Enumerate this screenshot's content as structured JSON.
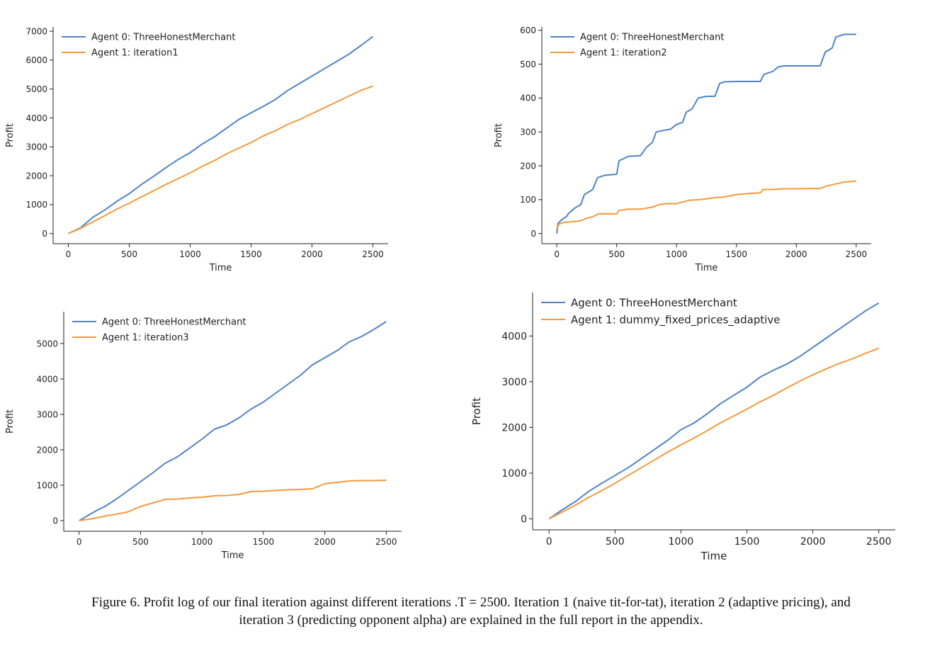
{
  "caption": {
    "line1": "Figure 6. Profit log of our final iteration against different iterations .T = 2500. Iteration 1 (naive tit-for-tat), iteration 2 (adaptive pricing), and",
    "line2": "iteration 3 (predicting opponent alpha) are explained in the full report in the appendix."
  },
  "colors": {
    "agent0": "#4e84c4",
    "agent1": "#f39a3d"
  },
  "chart_data": [
    {
      "type": "line",
      "xlabel": "Time",
      "ylabel": "Profit",
      "xlim": [
        -125,
        2625
      ],
      "ylim": [
        -350,
        7150
      ],
      "xticks": [
        0,
        500,
        1000,
        1500,
        2000,
        2500
      ],
      "yticks": [
        0,
        1000,
        2000,
        3000,
        4000,
        5000,
        6000,
        7000
      ],
      "legend_position": "top-left",
      "grid": false,
      "series": [
        {
          "name": "Agent 0: ThreeHonestMerchant",
          "color": "#4e84c4",
          "points": [
            [
              0,
              0
            ],
            [
              100,
              200
            ],
            [
              200,
              560
            ],
            [
              300,
              820
            ],
            [
              400,
              1120
            ],
            [
              500,
              1380
            ],
            [
              600,
              1700
            ],
            [
              700,
              1980
            ],
            [
              800,
              2280
            ],
            [
              900,
              2560
            ],
            [
              1000,
              2800
            ],
            [
              1100,
              3100
            ],
            [
              1200,
              3350
            ],
            [
              1300,
              3650
            ],
            [
              1400,
              3950
            ],
            [
              1500,
              4180
            ],
            [
              1600,
              4400
            ],
            [
              1700,
              4640
            ],
            [
              1800,
              4950
            ],
            [
              1900,
              5200
            ],
            [
              2000,
              5450
            ],
            [
              2100,
              5700
            ],
            [
              2200,
              5950
            ],
            [
              2300,
              6200
            ],
            [
              2400,
              6500
            ],
            [
              2500,
              6820
            ]
          ]
        },
        {
          "name": "Agent 1: iteration1",
          "color": "#f39a3d",
          "points": [
            [
              0,
              0
            ],
            [
              100,
              180
            ],
            [
              200,
              400
            ],
            [
              300,
              620
            ],
            [
              400,
              850
            ],
            [
              500,
              1050
            ],
            [
              600,
              1270
            ],
            [
              700,
              1480
            ],
            [
              800,
              1700
            ],
            [
              900,
              1900
            ],
            [
              1000,
              2100
            ],
            [
              1100,
              2330
            ],
            [
              1200,
              2530
            ],
            [
              1300,
              2760
            ],
            [
              1400,
              2960
            ],
            [
              1500,
              3150
            ],
            [
              1600,
              3380
            ],
            [
              1700,
              3560
            ],
            [
              1800,
              3780
            ],
            [
              1900,
              3950
            ],
            [
              2000,
              4150
            ],
            [
              2100,
              4350
            ],
            [
              2200,
              4550
            ],
            [
              2300,
              4750
            ],
            [
              2400,
              4950
            ],
            [
              2500,
              5100
            ]
          ]
        }
      ]
    },
    {
      "type": "line",
      "xlabel": "Time",
      "ylabel": "Profit",
      "xlim": [
        -125,
        2625
      ],
      "ylim": [
        -30,
        610
      ],
      "xticks": [
        0,
        500,
        1000,
        1500,
        2000,
        2500
      ],
      "yticks": [
        0,
        100,
        200,
        300,
        400,
        500,
        600
      ],
      "legend_position": "top-left",
      "grid": false,
      "series": [
        {
          "name": "Agent 0: ThreeHonestMerchant",
          "color": "#4e84c4",
          "points": [
            [
              0,
              0
            ],
            [
              10,
              30
            ],
            [
              40,
              40
            ],
            [
              80,
              50
            ],
            [
              100,
              60
            ],
            [
              150,
              75
            ],
            [
              200,
              85
            ],
            [
              230,
              115
            ],
            [
              300,
              130
            ],
            [
              340,
              165
            ],
            [
              400,
              172
            ],
            [
              500,
              175
            ],
            [
              520,
              215
            ],
            [
              600,
              228
            ],
            [
              700,
              230
            ],
            [
              750,
              255
            ],
            [
              800,
              270
            ],
            [
              830,
              300
            ],
            [
              900,
              305
            ],
            [
              950,
              308
            ],
            [
              1000,
              322
            ],
            [
              1050,
              328
            ],
            [
              1080,
              358
            ],
            [
              1130,
              368
            ],
            [
              1180,
              400
            ],
            [
              1250,
              405
            ],
            [
              1320,
              405
            ],
            [
              1360,
              443
            ],
            [
              1400,
              448
            ],
            [
              1500,
              449
            ],
            [
              1700,
              449
            ],
            [
              1730,
              470
            ],
            [
              1800,
              478
            ],
            [
              1850,
              492
            ],
            [
              1900,
              495
            ],
            [
              2000,
              495
            ],
            [
              2100,
              495
            ],
            [
              2200,
              495
            ],
            [
              2240,
              535
            ],
            [
              2300,
              548
            ],
            [
              2330,
              580
            ],
            [
              2400,
              588
            ],
            [
              2500,
              588
            ]
          ]
        },
        {
          "name": "Agent 1: iteration2",
          "color": "#f39a3d",
          "points": [
            [
              0,
              15
            ],
            [
              20,
              28
            ],
            [
              60,
              33
            ],
            [
              150,
              35
            ],
            [
              200,
              38
            ],
            [
              250,
              45
            ],
            [
              300,
              50
            ],
            [
              350,
              58
            ],
            [
              400,
              58
            ],
            [
              500,
              58
            ],
            [
              520,
              68
            ],
            [
              600,
              72
            ],
            [
              700,
              72
            ],
            [
              750,
              75
            ],
            [
              800,
              78
            ],
            [
              850,
              85
            ],
            [
              900,
              88
            ],
            [
              1000,
              88
            ],
            [
              1100,
              98
            ],
            [
              1200,
              100
            ],
            [
              1300,
              105
            ],
            [
              1400,
              108
            ],
            [
              1500,
              115
            ],
            [
              1600,
              118
            ],
            [
              1700,
              120
            ],
            [
              1720,
              130
            ],
            [
              1800,
              130
            ],
            [
              1900,
              132
            ],
            [
              2000,
              132
            ],
            [
              2100,
              133
            ],
            [
              2200,
              133
            ],
            [
              2250,
              140
            ],
            [
              2350,
              148
            ],
            [
              2400,
              152
            ],
            [
              2500,
              155
            ]
          ]
        }
      ]
    },
    {
      "type": "line",
      "xlabel": "Time",
      "ylabel": "Profit",
      "xlim": [
        -125,
        2625
      ],
      "ylim": [
        -300,
        5900
      ],
      "xticks": [
        0,
        500,
        1000,
        1500,
        2000,
        2500
      ],
      "yticks": [
        0,
        1000,
        2000,
        3000,
        4000,
        5000
      ],
      "legend_position": "top-left",
      "grid": false,
      "series": [
        {
          "name": "Agent 0: ThreeHonestMerchant",
          "color": "#4e84c4",
          "points": [
            [
              0,
              0
            ],
            [
              50,
              100
            ],
            [
              100,
              200
            ],
            [
              150,
              300
            ],
            [
              200,
              380
            ],
            [
              300,
              600
            ],
            [
              400,
              850
            ],
            [
              500,
              1100
            ],
            [
              600,
              1350
            ],
            [
              700,
              1620
            ],
            [
              800,
              1800
            ],
            [
              900,
              2050
            ],
            [
              1000,
              2300
            ],
            [
              1100,
              2580
            ],
            [
              1200,
              2700
            ],
            [
              1300,
              2900
            ],
            [
              1400,
              3150
            ],
            [
              1500,
              3350
            ],
            [
              1600,
              3600
            ],
            [
              1700,
              3850
            ],
            [
              1800,
              4100
            ],
            [
              1900,
              4400
            ],
            [
              2000,
              4600
            ],
            [
              2100,
              4800
            ],
            [
              2200,
              5050
            ],
            [
              2300,
              5200
            ],
            [
              2400,
              5400
            ],
            [
              2500,
              5620
            ]
          ]
        },
        {
          "name": "Agent 1: iteration3",
          "color": "#f39a3d",
          "points": [
            [
              0,
              0
            ],
            [
              100,
              50
            ],
            [
              200,
              120
            ],
            [
              300,
              180
            ],
            [
              400,
              250
            ],
            [
              500,
              400
            ],
            [
              600,
              500
            ],
            [
              700,
              600
            ],
            [
              800,
              610
            ],
            [
              900,
              640
            ],
            [
              1000,
              660
            ],
            [
              1100,
              700
            ],
            [
              1200,
              710
            ],
            [
              1300,
              740
            ],
            [
              1400,
              820
            ],
            [
              1500,
              830
            ],
            [
              1600,
              850
            ],
            [
              1700,
              870
            ],
            [
              1800,
              880
            ],
            [
              1900,
              900
            ],
            [
              2000,
              1040
            ],
            [
              2100,
              1080
            ],
            [
              2200,
              1120
            ],
            [
              2300,
              1130
            ],
            [
              2400,
              1130
            ],
            [
              2500,
              1140
            ]
          ]
        }
      ]
    },
    {
      "type": "line",
      "xlabel": "Time",
      "ylabel": "Profit",
      "xlim": [
        -125,
        2625
      ],
      "ylim": [
        -240,
        4950
      ],
      "xticks": [
        0,
        500,
        1000,
        1500,
        2000,
        2500
      ],
      "yticks": [
        0,
        1000,
        2000,
        3000,
        4000
      ],
      "legend_position": "top-left",
      "grid": false,
      "series": [
        {
          "name": "Agent 0: ThreeHonestMerchant",
          "color": "#4e84c4",
          "points": [
            [
              0,
              0
            ],
            [
              100,
              200
            ],
            [
              200,
              380
            ],
            [
              300,
              600
            ],
            [
              400,
              780
            ],
            [
              500,
              950
            ],
            [
              600,
              1120
            ],
            [
              700,
              1320
            ],
            [
              800,
              1520
            ],
            [
              900,
              1720
            ],
            [
              1000,
              1950
            ],
            [
              1100,
              2100
            ],
            [
              1200,
              2300
            ],
            [
              1300,
              2520
            ],
            [
              1400,
              2700
            ],
            [
              1500,
              2880
            ],
            [
              1600,
              3100
            ],
            [
              1700,
              3250
            ],
            [
              1800,
              3380
            ],
            [
              1900,
              3550
            ],
            [
              2000,
              3750
            ],
            [
              2100,
              3950
            ],
            [
              2200,
              4150
            ],
            [
              2300,
              4350
            ],
            [
              2400,
              4550
            ],
            [
              2500,
              4720
            ]
          ]
        },
        {
          "name": "Agent 1: dummy_fixed_prices_adaptive",
          "color": "#f39a3d",
          "points": [
            [
              0,
              0
            ],
            [
              100,
              150
            ],
            [
              200,
              300
            ],
            [
              300,
              470
            ],
            [
              400,
              620
            ],
            [
              500,
              780
            ],
            [
              600,
              950
            ],
            [
              700,
              1120
            ],
            [
              800,
              1290
            ],
            [
              900,
              1460
            ],
            [
              1000,
              1620
            ],
            [
              1100,
              1770
            ],
            [
              1200,
              1930
            ],
            [
              1300,
              2100
            ],
            [
              1400,
              2250
            ],
            [
              1500,
              2400
            ],
            [
              1600,
              2560
            ],
            [
              1700,
              2700
            ],
            [
              1800,
              2860
            ],
            [
              1900,
              3010
            ],
            [
              2000,
              3150
            ],
            [
              2100,
              3280
            ],
            [
              2200,
              3400
            ],
            [
              2300,
              3500
            ],
            [
              2400,
              3620
            ],
            [
              2500,
              3730
            ]
          ]
        }
      ]
    }
  ]
}
